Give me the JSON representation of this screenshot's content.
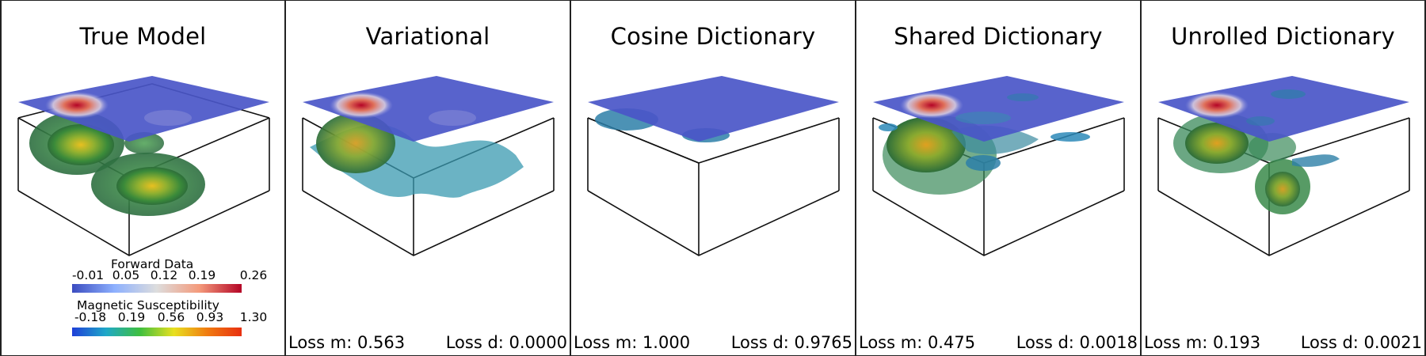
{
  "panels": [
    {
      "title": "True Model",
      "loss_m": "",
      "loss_d": ""
    },
    {
      "title": "Variational",
      "loss_m": "Loss m: 0.563",
      "loss_d": "Loss d: 0.0000"
    },
    {
      "title": "Cosine Dictionary",
      "loss_m": "Loss m: 1.000",
      "loss_d": "Loss d: 0.9765"
    },
    {
      "title": "Shared Dictionary",
      "loss_m": "Loss m: 0.475",
      "loss_d": "Loss d: 0.0018"
    },
    {
      "title": "Unrolled Dictionary",
      "loss_m": "Loss m: 0.193",
      "loss_d": "Loss d: 0.0021"
    }
  ],
  "colorbars": {
    "forward": {
      "label": "Forward Data",
      "ticks": [
        "-0.01",
        "0.05",
        "0.12",
        "0.19",
        "0.26"
      ],
      "colors": [
        "#3b4cc0",
        "#8db0fe",
        "#dddddd",
        "#f49a7b",
        "#b40426"
      ]
    },
    "susceptibility": {
      "label": "Magnetic Susceptibility",
      "ticks": [
        "-0.18",
        "0.19",
        "0.56",
        "0.93",
        "1.30"
      ],
      "colors": [
        "#1f3fd8",
        "#1fa8c8",
        "#3fbf3f",
        "#e8e020",
        "#f07a10",
        "#e83010"
      ]
    }
  }
}
